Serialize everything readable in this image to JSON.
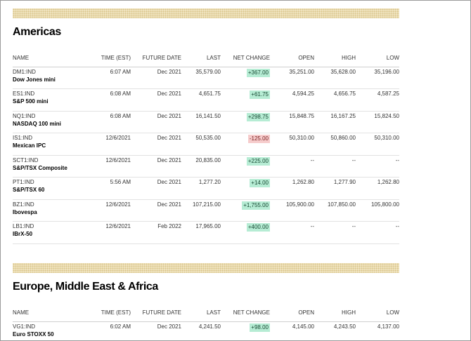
{
  "sections": [
    {
      "title": "Americas",
      "columns": [
        "NAME",
        "TIME (EST)",
        "FUTURE DATE",
        "LAST",
        "NET CHANGE",
        "OPEN",
        "HIGH",
        "LOW"
      ],
      "rows": [
        {
          "symbol": "DM1:IND",
          "name": "Dow Jones mini",
          "time": "6:07 AM",
          "future_date": "Dec 2021",
          "last": "35,579.00",
          "net_change": "+367.00",
          "direction": "up",
          "open": "35,251.00",
          "high": "35,628.00",
          "low": "35,196.00"
        },
        {
          "symbol": "ES1:IND",
          "name": "S&P 500 mini",
          "time": "6:08 AM",
          "future_date": "Dec 2021",
          "last": "4,651.75",
          "net_change": "+61.75",
          "direction": "up",
          "open": "4,594.25",
          "high": "4,656.75",
          "low": "4,587.25"
        },
        {
          "symbol": "NQ1:IND",
          "name": "NASDAQ 100 mini",
          "time": "6:08 AM",
          "future_date": "Dec 2021",
          "last": "16,141.50",
          "net_change": "+298.75",
          "direction": "up",
          "open": "15,848.75",
          "high": "16,167.25",
          "low": "15,824.50"
        },
        {
          "symbol": "IS1:IND",
          "name": "Mexican IPC",
          "time": "12/6/2021",
          "future_date": "Dec 2021",
          "last": "50,535.00",
          "net_change": "-125.00",
          "direction": "down",
          "open": "50,310.00",
          "high": "50,860.00",
          "low": "50,310.00"
        },
        {
          "symbol": "SCT1:IND",
          "name": "S&P/TSX Composite",
          "time": "12/6/2021",
          "future_date": "Dec 2021",
          "last": "20,835.00",
          "net_change": "+225.00",
          "direction": "up",
          "open": "--",
          "high": "--",
          "low": "--"
        },
        {
          "symbol": "PT1:IND",
          "name": "S&P/TSX 60",
          "time": "5:56 AM",
          "future_date": "Dec 2021",
          "last": "1,277.20",
          "net_change": "+14.00",
          "direction": "up",
          "open": "1,262.80",
          "high": "1,277.90",
          "low": "1,262.80"
        },
        {
          "symbol": "BZ1:IND",
          "name": "Ibovespa",
          "time": "12/6/2021",
          "future_date": "Dec 2021",
          "last": "107,215.00",
          "net_change": "+1,755.00",
          "direction": "up",
          "open": "105,900.00",
          "high": "107,850.00",
          "low": "105,800.00"
        },
        {
          "symbol": "LB1:IND",
          "name": "IBrX-50",
          "time": "12/6/2021",
          "future_date": "Feb 2022",
          "last": "17,965.00",
          "net_change": "+400.00",
          "direction": "up",
          "open": "--",
          "high": "--",
          "low": "--"
        }
      ]
    },
    {
      "title": "Europe, Middle East & Africa",
      "columns": [
        "NAME",
        "TIME (EST)",
        "FUTURE DATE",
        "LAST",
        "NET CHANGE",
        "OPEN",
        "HIGH",
        "LOW"
      ],
      "rows": [
        {
          "symbol": "VG1:IND",
          "name": "Euro STOXX 50",
          "time": "6:02 AM",
          "future_date": "Dec 2021",
          "last": "4,241.50",
          "net_change": "+98.00",
          "direction": "up",
          "open": "4,145.00",
          "high": "4,243.50",
          "low": "4,137.00"
        }
      ]
    }
  ],
  "colors": {
    "up_bg": "#b6ecd4",
    "down_bg": "#f6cccc",
    "band": "#f3e8c6"
  }
}
